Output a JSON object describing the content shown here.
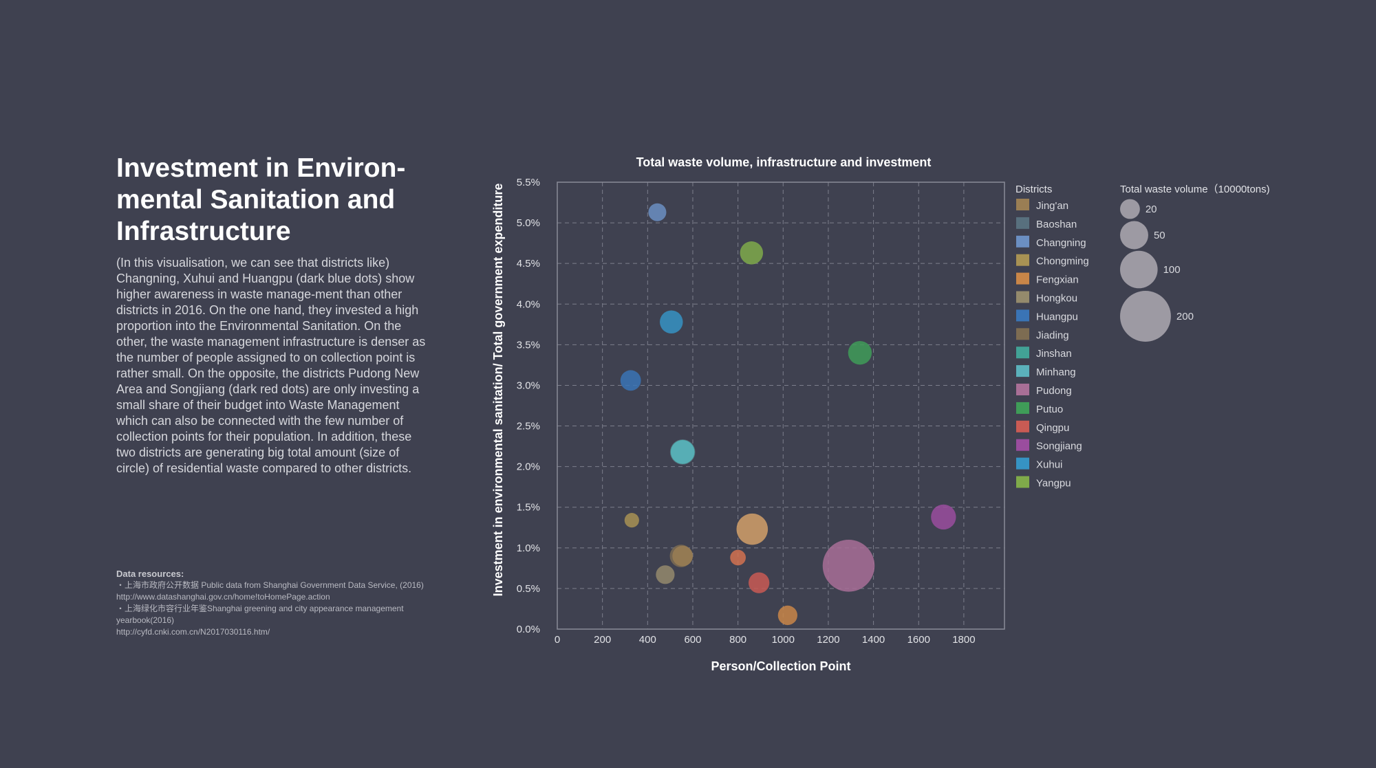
{
  "page": {
    "title": "Investment in Environ-mental Sanitation and Infrastructure",
    "description": "(In this visualisation, we can see that districts like) Changning, Xuhui and Huangpu (dark blue dots) show higher awareness in waste manage-ment than other districts in 2016. On the one hand, they invested a high proportion into the Environmental Sanitation. On the other, the waste management infrastructure is denser as the number of people assigned to on collection point is rather small. On the opposite, the districts Pudong New Area and Songjiang (dark red dots) are only investing a small share of their budget into Waste Management which can also be connected with the few number of collection points for their population. In addition, these two districts are generating big total amount (size of circle) of residential waste compared to other districts.",
    "resources": {
      "title": "Data resources:",
      "line1": "・上海市政府公开数据 Public data from Shanghai Government Data Service, (2016)",
      "line2": "http://www.datashanghai.gov.cn/home!toHomePage.action",
      "line3": "・上海绿化市容行业年鉴Shanghai greening and city appearance management yearbook(2016)",
      "line4": "http://cyfd.cnki.com.cn/N2017030116.htm/"
    }
  },
  "chart_data": {
    "type": "scatter",
    "title": "Total waste volume, infrastructure and investment",
    "xlabel": "Person/Collection Point",
    "ylabel": "Investment in environmental sanitation/ Total government expenditure",
    "xlim": [
      0,
      1980
    ],
    "ylim": [
      0,
      5.5
    ],
    "x_ticks": [
      "0",
      "200",
      "400",
      "600",
      "800",
      "1000",
      "1200",
      "1400",
      "1600",
      "1800"
    ],
    "y_ticks": [
      "0.0%",
      "0.5%",
      "1.0%",
      "1.5%",
      "2.0%",
      "2.5%",
      "3.0%",
      "3.5%",
      "4.0%",
      "4.5%",
      "5.0%",
      "5.5%"
    ],
    "grid": true,
    "legend_title": "Districts",
    "size_legend_title": "Total waste volume（10000tons)",
    "size_legend": [
      {
        "label": "20",
        "value": 20
      },
      {
        "label": "50",
        "value": 50
      },
      {
        "label": "100",
        "value": 100
      },
      {
        "label": "200",
        "value": 200
      }
    ],
    "series": [
      {
        "name": "Jing'an",
        "color": "#9a7e54",
        "x": 555,
        "y": 0.9,
        "size": 22
      },
      {
        "name": "Baoshan",
        "color": "#58707e",
        "x": 555,
        "y": 2.18,
        "size": 38
      },
      {
        "name": "Changning",
        "color": "#6b8fc2",
        "x": 443,
        "y": 5.13,
        "size": 15
      },
      {
        "name": "Chongming",
        "color": "#a89254",
        "x": 330,
        "y": 1.34,
        "size": 8
      },
      {
        "name": "Fengxian",
        "color": "#c98648",
        "x": 1020,
        "y": 0.17,
        "size": 19
      },
      {
        "name": "Hongkou",
        "color": "#948a6c",
        "x": 478,
        "y": 0.67,
        "size": 17
      },
      {
        "name": "Huangpu",
        "color": "#3a74b5",
        "x": 325,
        "y": 3.06,
        "size": 22
      },
      {
        "name": "Jiading",
        "color": "#7d6c52",
        "x": 548,
        "y": 0.9,
        "size": 28
      },
      {
        "name": "Jinshan",
        "color": "#42a296",
        "x": 555,
        "y": 2.18,
        "size": 34
      },
      {
        "name": "Minhang",
        "color": "#5bb1bb",
        "x": 555,
        "y": 2.18,
        "size": 32
      },
      {
        "name": "Pudong",
        "color": "#a86f96",
        "x": 1290,
        "y": 0.78,
        "size": 210
      },
      {
        "name": "Putuo",
        "color": "#3f9c58",
        "x": 1340,
        "y": 3.4,
        "size": 32
      },
      {
        "name": "Qingpu",
        "color": "#c95b54",
        "x": 893,
        "y": 0.57,
        "size": 23
      },
      {
        "name": "Songjiang",
        "color": "#9a4d9e",
        "x": 1710,
        "y": 1.38,
        "size": 37
      },
      {
        "name": "Xuhui",
        "color": "#3693c3",
        "x": 505,
        "y": 3.78,
        "size": 30
      },
      {
        "name": "Yangpu",
        "color": "#7faa4a",
        "x": 860,
        "y": 4.63,
        "size": 30
      },
      {
        "name": "",
        "color": "#d2a068",
        "x": 863,
        "y": 1.23,
        "size": 65
      },
      {
        "name": "",
        "color": "#d27250",
        "x": 800,
        "y": 0.88,
        "size": 10
      }
    ]
  }
}
